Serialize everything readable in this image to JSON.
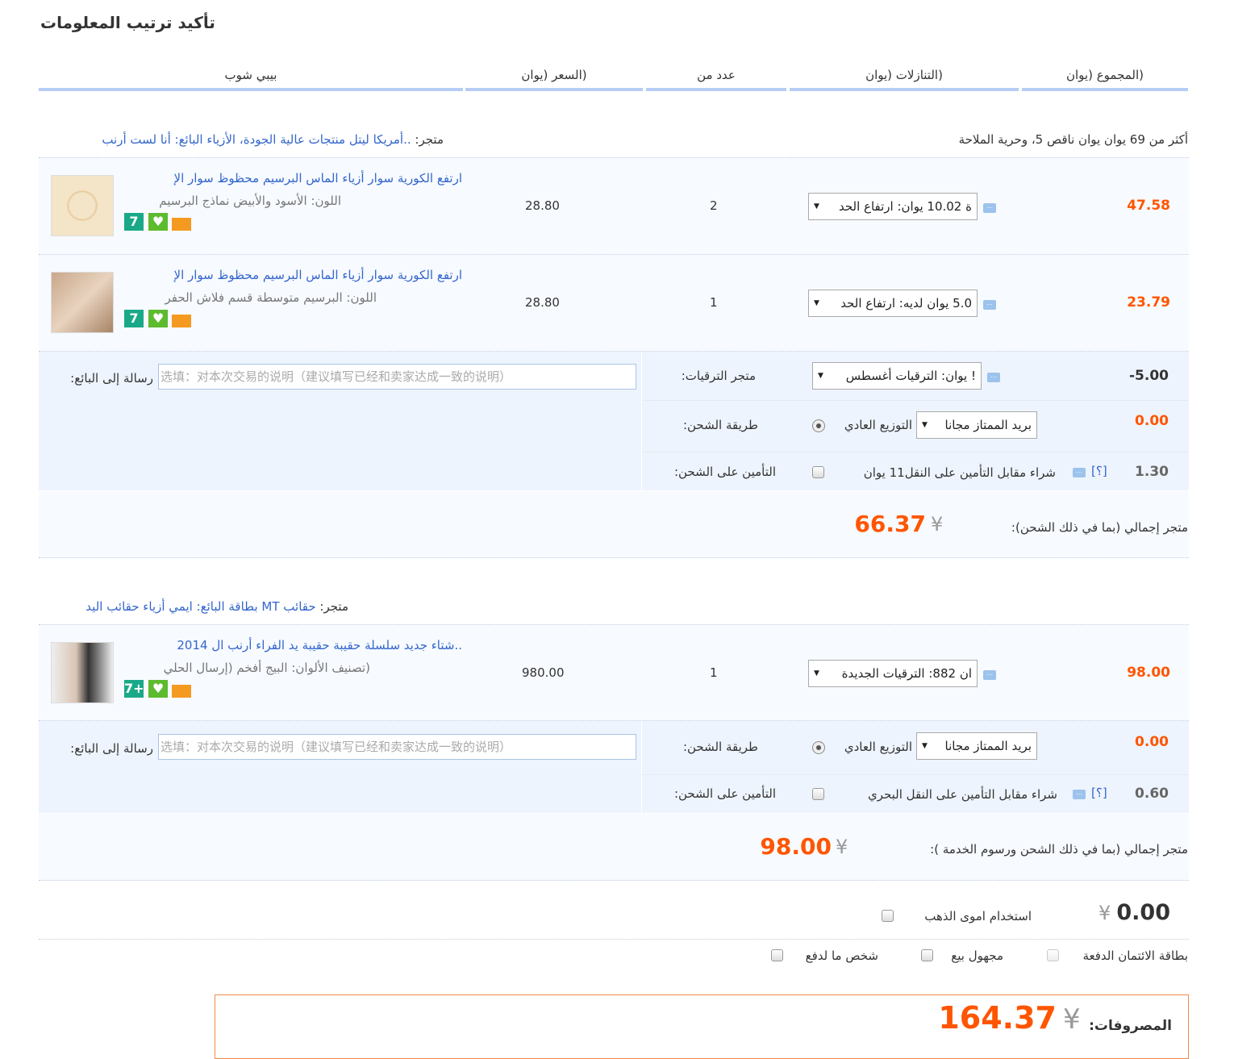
{
  "title": "تأكيد ترتيب المعلومات",
  "columns": {
    "product": "بيبي شوب",
    "price": "(السعر (يوان",
    "qty": "عدد من",
    "discount": "(التنازلات (يوان",
    "total": "(المجموع (يوان"
  },
  "shops": [
    {
      "store_label": "متجر:",
      "store_name": "..أمريكا ليتل منتجات عالية الجودة، الأزياء البائع: أنا لست أرنب",
      "promo_note": "أكثر من 69 يوان يوان ناقص 5، وحرية الملاحة",
      "items": [
        {
          "title": "ارتفع الكورية سوار أزياء الماس البرسيم محظوظ سوار الإ",
          "spec": "اللون: الأسود والأبيض نماذج البرسيم",
          "price": "28.80",
          "qty": "2",
          "discount": "ة 10.02 يوان: ارتفاع الحد",
          "total": "47.58"
        },
        {
          "title": "ارتفع الكورية سوار أزياء الماس البرسيم محظوظ سوار الإ",
          "spec": "اللون: البرسيم متوسطة قسم فلاش الحفر",
          "price": "28.80",
          "qty": "1",
          "discount": "5.0 يوان لديه: ارتفاع الحد",
          "total": "23.79"
        }
      ],
      "message_label": "رسالة إلى البائع:",
      "message_placeholder": "选填：对本次交易的说明（建议填写已经和卖家达成一致的说明）",
      "promo_label": "متجر الترقيات:",
      "promo_select": "! يوان: الترقيات أغسطس",
      "promo_value": "-5.00",
      "shipping_label": "طريقة الشحن:",
      "shipping_radio": "التوزيع العادي",
      "shipping_select": "بريد الممتاز مجانا",
      "shipping_value": "0.00",
      "insurance_label": "التأمين على الشحن:",
      "insurance_text": "شراء مقابل التأمين على النقل11 يوان",
      "insurance_help": "[؟]",
      "insurance_value": "1.30",
      "total_label": "متجر إجمالي (بما في ذلك الشحن):",
      "currency": "¥",
      "total": "66.37"
    },
    {
      "store_label": "متجر:",
      "store_name": "حقائب MT بطاقة البائع: ايمي أزياء حقائب اليد",
      "items": [
        {
          "title": "..شتاء جديد سلسلة حقيبة حقيبة يد الفراء أرنب ال 2014",
          "spec": "(تصنيف الألوان: البيج أفخم (إرسال الحلي",
          "price": "980.00",
          "qty": "1",
          "discount": "ان 882: الترقيات الجديدة",
          "total": "98.00"
        }
      ],
      "message_label": "رسالة إلى البائع:",
      "message_placeholder": "选填：对本次交易的说明（建议填写已经和卖家达成一致的说明）",
      "shipping_label": "طريقة الشحن:",
      "shipping_radio": "التوزيع العادي",
      "shipping_select": "بريد الممتاز مجانا",
      "shipping_value": "0.00",
      "insurance_label": "التأمين على الشحن:",
      "insurance_text": "شراء مقابل التأمين على النقل البحري",
      "insurance_help": "[؟]",
      "insurance_value": "0.60",
      "total_label": "متجر إجمالي (بما في ذلك الشحن ورسوم الخدمة ):",
      "currency": "¥",
      "total": "98.00"
    }
  ],
  "gold": {
    "label": "استخدام اموى الذهب",
    "currency": "¥",
    "value": "0.00"
  },
  "options": {
    "credit_card": "بطاقة الائتمان الدفعة",
    "anonymous": "مجهول بيع",
    "pay_for_me": "شخص ما لدفع"
  },
  "summary": {
    "label": "المصروفات:",
    "currency": "¥",
    "total": "164.37"
  },
  "colors": {
    "accent": "#ff5500",
    "link": "#3366cc",
    "header_bar": "#b6cdf5"
  }
}
